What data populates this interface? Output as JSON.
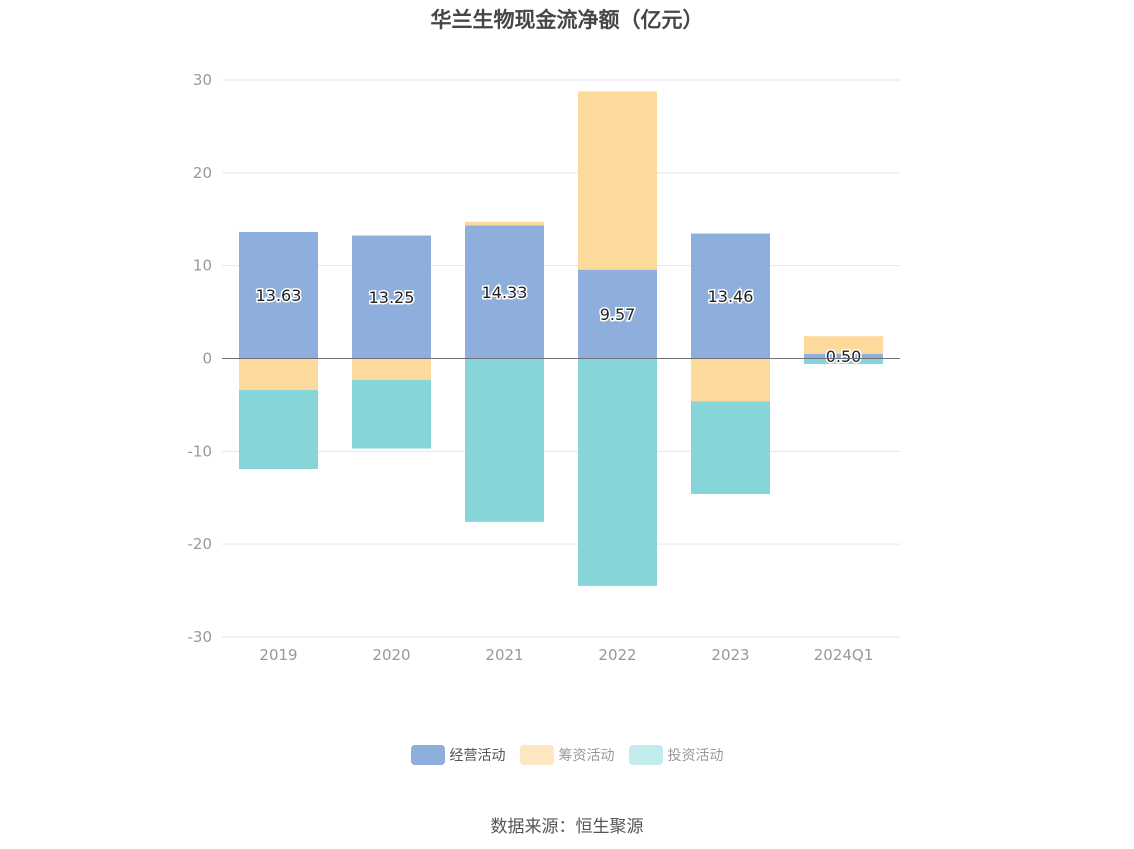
{
  "chart_data": {
    "type": "bar",
    "stacked": true,
    "title": "华兰生物现金流净额（亿元）",
    "categories": [
      "2019",
      "2020",
      "2021",
      "2022",
      "2023",
      "2024Q1"
    ],
    "series": [
      {
        "name": "经营活动",
        "color": "#8eaedb",
        "values": [
          13.63,
          13.25,
          14.33,
          9.57,
          13.46,
          0.5
        ],
        "labels": [
          "13.63",
          "13.25",
          "14.33",
          "9.57",
          "13.46",
          "0.50"
        ]
      },
      {
        "name": "筹资活动",
        "color": "#fed99c",
        "values": [
          -3.4,
          -2.3,
          0.4,
          19.2,
          -4.6,
          1.9
        ]
      },
      {
        "name": "投资活动",
        "color": "#86d5d9",
        "values": [
          -8.5,
          -7.4,
          -17.6,
          -24.5,
          -10.0,
          -0.6
        ]
      }
    ],
    "ylim": [
      -30,
      30
    ],
    "yticks": [
      30,
      20,
      10,
      0,
      -10,
      -20,
      -30
    ],
    "ytick_labels": [
      "30",
      "20",
      "10",
      "0",
      "-10",
      "-20",
      "-30"
    ],
    "grid": true,
    "legend_position": "bottom"
  },
  "legend": {
    "items": [
      {
        "name": "经营活动",
        "color": "#8eaedb",
        "text_color": "#555555"
      },
      {
        "name": "筹资活动",
        "color": "#fde6c2",
        "text_color": "#999999"
      },
      {
        "name": "投资活动",
        "color": "#c2ebed",
        "text_color": "#999999"
      }
    ]
  },
  "source": "数据来源：恒生聚源"
}
